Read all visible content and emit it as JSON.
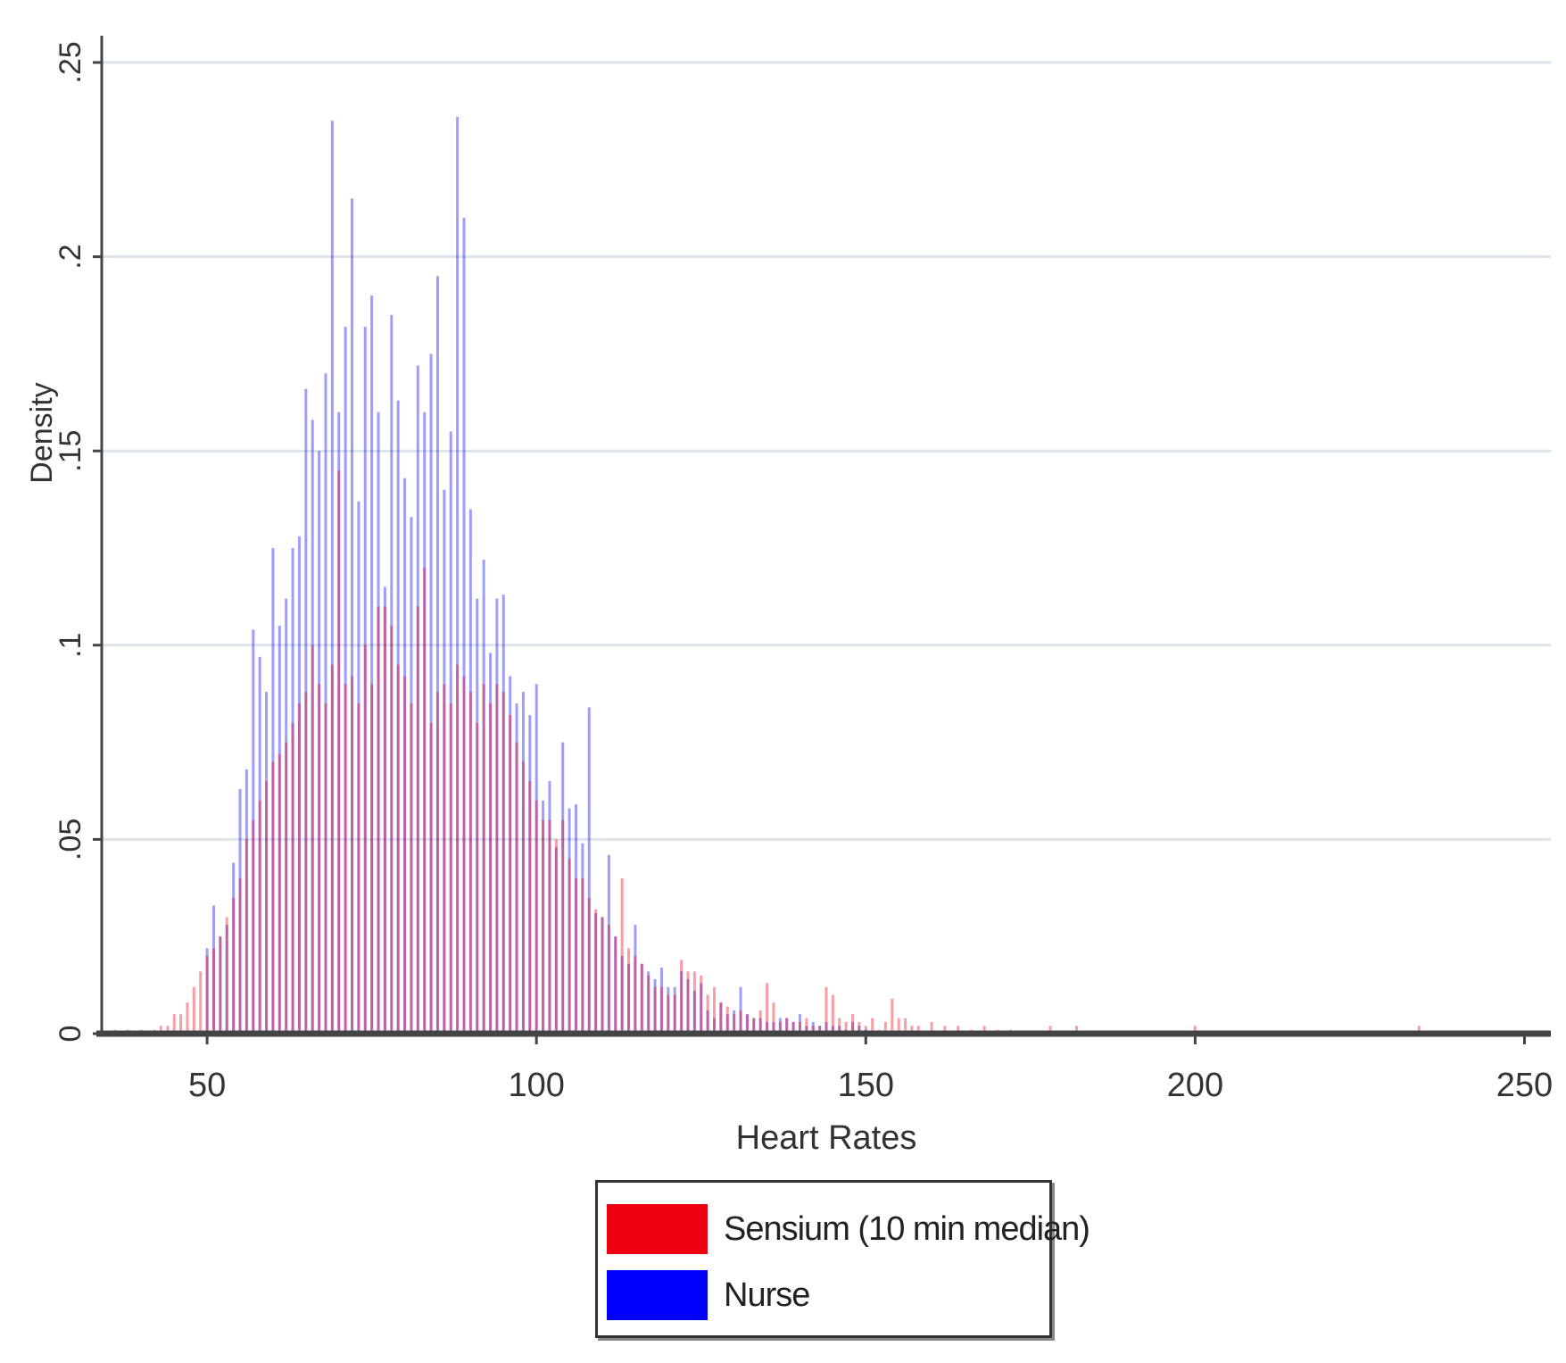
{
  "chart_data": {
    "type": "bar",
    "title": "",
    "xlabel": "Heart Rates",
    "ylabel": "Density",
    "xlim": [
      34,
      254
    ],
    "ylim": [
      0,
      0.25
    ],
    "x_ticks": [
      50,
      100,
      150,
      200,
      250
    ],
    "x_tick_labels": [
      "50",
      "100",
      "150",
      "200",
      "250"
    ],
    "y_ticks": [
      0,
      0.05,
      0.1,
      0.15,
      0.2,
      0.25
    ],
    "y_tick_labels": [
      "0",
      ".05",
      ".1",
      ".15",
      ".2",
      ".25"
    ],
    "grid": true,
    "legend_position": "bottom-center",
    "series": [
      {
        "name": "Sensium (10 min median)",
        "color": "#ee0010",
        "x": [
          36,
          38,
          40,
          42,
          43,
          44,
          45,
          46,
          47,
          48,
          49,
          50,
          51,
          52,
          53,
          54,
          55,
          56,
          57,
          58,
          59,
          60,
          61,
          62,
          63,
          64,
          65,
          66,
          67,
          68,
          69,
          70,
          71,
          72,
          73,
          74,
          75,
          76,
          77,
          78,
          79,
          80,
          81,
          82,
          83,
          84,
          85,
          86,
          87,
          88,
          89,
          90,
          91,
          92,
          93,
          94,
          95,
          96,
          97,
          98,
          99,
          100,
          101,
          102,
          103,
          104,
          105,
          106,
          107,
          108,
          109,
          110,
          111,
          112,
          113,
          114,
          115,
          116,
          117,
          118,
          119,
          120,
          121,
          122,
          123,
          124,
          125,
          126,
          127,
          128,
          129,
          130,
          131,
          132,
          133,
          134,
          135,
          136,
          137,
          138,
          139,
          140,
          141,
          142,
          143,
          144,
          145,
          146,
          147,
          148,
          149,
          150,
          151,
          152,
          153,
          154,
          155,
          156,
          157,
          158,
          160,
          162,
          164,
          166,
          168,
          170,
          172,
          178,
          182,
          200,
          234
        ],
        "values": [
          0.001,
          0.001,
          0.001,
          0.001,
          0.002,
          0.002,
          0.005,
          0.005,
          0.008,
          0.012,
          0.016,
          0.02,
          0.022,
          0.025,
          0.03,
          0.035,
          0.04,
          0.05,
          0.055,
          0.06,
          0.065,
          0.07,
          0.072,
          0.075,
          0.08,
          0.085,
          0.088,
          0.1,
          0.09,
          0.085,
          0.095,
          0.145,
          0.09,
          0.092,
          0.085,
          0.1,
          0.09,
          0.11,
          0.11,
          0.105,
          0.095,
          0.092,
          0.085,
          0.11,
          0.12,
          0.08,
          0.088,
          0.09,
          0.085,
          0.095,
          0.092,
          0.088,
          0.08,
          0.09,
          0.085,
          0.09,
          0.088,
          0.082,
          0.075,
          0.07,
          0.065,
          0.06,
          0.055,
          0.055,
          0.05,
          0.055,
          0.045,
          0.04,
          0.04,
          0.035,
          0.032,
          0.03,
          0.028,
          0.025,
          0.04,
          0.022,
          0.02,
          0.018,
          0.015,
          0.012,
          0.012,
          0.01,
          0.01,
          0.019,
          0.016,
          0.016,
          0.015,
          0.01,
          0.012,
          0.008,
          0.007,
          0.005,
          0.006,
          0.005,
          0.004,
          0.006,
          0.013,
          0.008,
          0.003,
          0.004,
          0.003,
          0.003,
          0.004,
          0.002,
          0.002,
          0.012,
          0.01,
          0.004,
          0.003,
          0.005,
          0.003,
          0.002,
          0.004,
          0.001,
          0.003,
          0.009,
          0.004,
          0.004,
          0.002,
          0.002,
          0.003,
          0.002,
          0.002,
          0.001,
          0.002,
          0.001,
          0.001,
          0.002,
          0.002,
          0.002,
          0.002
        ]
      },
      {
        "name": "Nurse",
        "color": "#0000ff",
        "x": [
          50,
          51,
          52,
          53,
          54,
          55,
          56,
          57,
          58,
          59,
          60,
          61,
          62,
          63,
          64,
          65,
          66,
          67,
          68,
          69,
          70,
          71,
          72,
          73,
          74,
          75,
          76,
          77,
          78,
          79,
          80,
          81,
          82,
          83,
          84,
          85,
          86,
          87,
          88,
          89,
          90,
          91,
          92,
          93,
          94,
          95,
          96,
          97,
          98,
          99,
          100,
          101,
          102,
          103,
          104,
          105,
          106,
          107,
          108,
          109,
          110,
          111,
          112,
          113,
          114,
          115,
          116,
          117,
          118,
          119,
          120,
          121,
          122,
          123,
          124,
          125,
          126,
          127,
          128,
          129,
          130,
          131,
          132,
          133,
          134,
          135,
          136,
          137,
          138,
          139,
          140,
          141,
          142,
          143,
          144,
          145,
          146,
          147,
          148,
          149,
          150
        ],
        "values": [
          0.022,
          0.033,
          0.025,
          0.028,
          0.044,
          0.063,
          0.068,
          0.104,
          0.097,
          0.088,
          0.125,
          0.105,
          0.112,
          0.125,
          0.128,
          0.166,
          0.158,
          0.15,
          0.17,
          0.235,
          0.16,
          0.182,
          0.215,
          0.137,
          0.182,
          0.19,
          0.16,
          0.115,
          0.185,
          0.163,
          0.143,
          0.133,
          0.172,
          0.16,
          0.175,
          0.195,
          0.14,
          0.155,
          0.236,
          0.21,
          0.135,
          0.112,
          0.122,
          0.098,
          0.112,
          0.113,
          0.092,
          0.085,
          0.088,
          0.082,
          0.09,
          0.06,
          0.065,
          0.048,
          0.075,
          0.058,
          0.059,
          0.049,
          0.084,
          0.031,
          0.03,
          0.046,
          0.025,
          0.02,
          0.018,
          0.028,
          0.018,
          0.016,
          0.014,
          0.017,
          0.012,
          0.012,
          0.016,
          0.014,
          0.011,
          0.013,
          0.006,
          0.004,
          0.008,
          0.005,
          0.006,
          0.012,
          0.005,
          0.004,
          0.004,
          0.003,
          0.003,
          0.004,
          0.004,
          0.003,
          0.005,
          0.002,
          0.003,
          0.002,
          0.003,
          0.002,
          0.002,
          0.001,
          0.003,
          0.002,
          0.001
        ]
      }
    ]
  }
}
